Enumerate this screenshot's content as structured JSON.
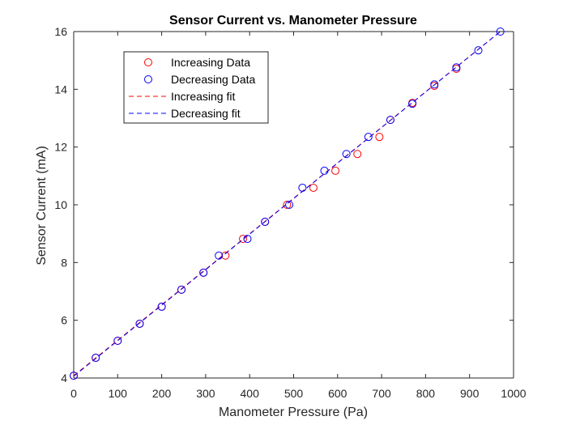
{
  "colors": {
    "increasing": "#ff0000",
    "decreasing": "#0000ff",
    "axis": "#262626",
    "text": "#262626"
  },
  "chart_data": {
    "type": "scatter",
    "title": "Sensor Current vs. Manometer Pressure",
    "xlabel": "Manometer Pressure (Pa)",
    "ylabel": "Sensor Current (mA)",
    "xlim": [
      0,
      1000
    ],
    "ylim": [
      4,
      16
    ],
    "xticks": [
      "0",
      "100",
      "200",
      "300",
      "400",
      "500",
      "600",
      "700",
      "800",
      "900",
      "1000"
    ],
    "yticks": [
      "4",
      "6",
      "8",
      "10",
      "12",
      "14",
      "16"
    ],
    "grid": false,
    "legend_position": "top-left",
    "series": [
      {
        "name": "Increasing Data",
        "kind": "markers",
        "marker": "open-circle",
        "color": "#ff0000",
        "points": [
          [
            0,
            4.08
          ],
          [
            50,
            4.7
          ],
          [
            100,
            5.29
          ],
          [
            150,
            5.88
          ],
          [
            200,
            6.47
          ],
          [
            245,
            7.06
          ],
          [
            295,
            7.65
          ],
          [
            345,
            8.24
          ],
          [
            385,
            8.82
          ],
          [
            435,
            9.41
          ],
          [
            485,
            10.0
          ],
          [
            545,
            10.59
          ],
          [
            595,
            11.18
          ],
          [
            645,
            11.76
          ],
          [
            695,
            12.35
          ],
          [
            720,
            12.94
          ],
          [
            770,
            13.53
          ],
          [
            820,
            14.12
          ],
          [
            870,
            14.71
          ]
        ]
      },
      {
        "name": "Decreasing Data",
        "kind": "markers",
        "marker": "open-circle",
        "color": "#0000ff",
        "points": [
          [
            970,
            16.0
          ],
          [
            920,
            15.35
          ],
          [
            870,
            14.76
          ],
          [
            820,
            14.17
          ],
          [
            770,
            13.5
          ],
          [
            720,
            12.94
          ],
          [
            670,
            12.35
          ],
          [
            620,
            11.76
          ],
          [
            570,
            11.18
          ],
          [
            520,
            10.59
          ],
          [
            490,
            10.0
          ],
          [
            435,
            9.41
          ],
          [
            395,
            8.82
          ],
          [
            330,
            8.24
          ],
          [
            295,
            7.65
          ],
          [
            245,
            7.06
          ],
          [
            200,
            6.47
          ],
          [
            150,
            5.88
          ],
          [
            100,
            5.29
          ],
          [
            50,
            4.7
          ],
          [
            0,
            4.08
          ]
        ]
      },
      {
        "name": "Increasing fit",
        "kind": "line",
        "style": "dashed",
        "color": "#ff0000",
        "points": [
          [
            0,
            4.08
          ],
          [
            970,
            16.0
          ]
        ]
      },
      {
        "name": "Decreasing fit",
        "kind": "line",
        "style": "dashed",
        "color": "#0000ff",
        "points": [
          [
            0,
            4.06
          ],
          [
            970,
            16.0
          ]
        ]
      }
    ]
  }
}
